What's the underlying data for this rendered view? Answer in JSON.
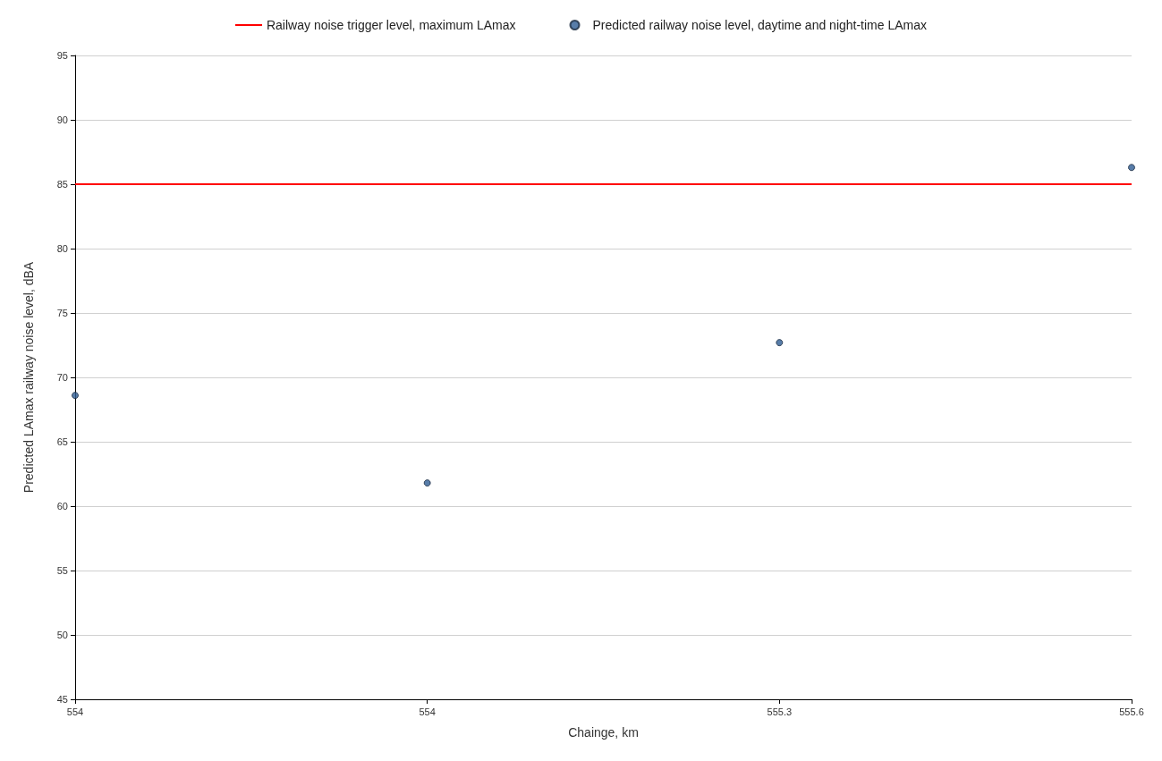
{
  "chart_data": {
    "type": "scatter",
    "xlabel": "Chainge, km",
    "ylabel": "Predicted LAmax railway noise level, dBA",
    "categories": [
      "554",
      "554",
      "555.3",
      "555.6"
    ],
    "series": [
      {
        "name": "Railway noise trigger level, maximum LAmax",
        "type": "line",
        "color": "#ff0000",
        "marker": "none",
        "values": [
          85,
          85,
          85,
          85
        ]
      },
      {
        "name": "Predicted railway noise level, daytime and night-time LAmax",
        "color": "#2e5c94",
        "marker": "circle",
        "values": [
          68.6,
          61.8,
          72.7,
          86.3
        ]
      }
    ],
    "ylim": [
      45,
      95
    ],
    "yticks": [
      45,
      50,
      55,
      60,
      65,
      70,
      75,
      80,
      85,
      90,
      95
    ],
    "grid": "y",
    "legend": "top",
    "line_style": "solid"
  }
}
